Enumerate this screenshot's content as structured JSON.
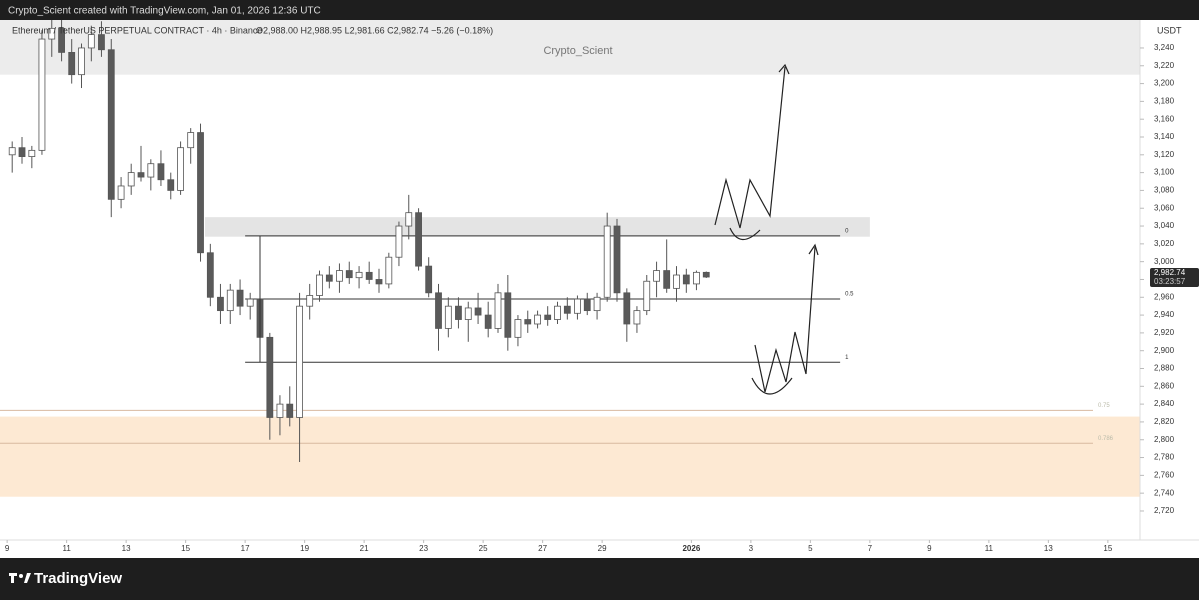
{
  "chart_data": {
    "type": "candlestick",
    "credit": "Crypto_Scient created with TradingView.com, Jan 01, 2026 12:36 UTC",
    "title": "Ethereum / TetherUS PERPETUAL CONTRACT · 4h · Binance",
    "ohlc_text": "O2,988.00 H2,988.95 L2,981.66 C2,982.74 −5.26 (−0.18%)",
    "watermark": "Crypto_Scient",
    "y_axis_label": "USDT",
    "brand": "TradingView",
    "up_color": "#ffffff",
    "down_color": "#5a5a5a",
    "wick_color": "#555555",
    "x": [
      9.17,
      9.5,
      9.83,
      10.17,
      10.5,
      10.83,
      11.17,
      11.5,
      11.83,
      12.17,
      12.5,
      12.83,
      13.17,
      13.5,
      13.83,
      14.17,
      14.5,
      14.83,
      15.17,
      15.5,
      15.83,
      16.17,
      16.5,
      16.83,
      17.17,
      17.5,
      17.83,
      18.17,
      18.5,
      18.83,
      19.17,
      19.5,
      19.83,
      20.17,
      20.5,
      20.83,
      21.17,
      21.5,
      21.83,
      22.17,
      22.5,
      22.83,
      23.17,
      23.5,
      23.83,
      24.17,
      24.5,
      24.83,
      25.17,
      25.5,
      25.83,
      26.17,
      26.5,
      26.83,
      27.17,
      27.5,
      27.83,
      28.17,
      28.5,
      28.83,
      29.17,
      29.5,
      29.83,
      30.17,
      30.5,
      30.83,
      31.17,
      31.5,
      31.83,
      32.17,
      32.5
    ],
    "open": [
      3120,
      3128,
      3118,
      3125,
      3250,
      3262,
      3235,
      3210,
      3240,
      3255,
      3238,
      3070,
      3085,
      3100,
      3095,
      3110,
      3092,
      3080,
      3128,
      3145,
      3010,
      2960,
      2945,
      2968,
      2950,
      2958,
      2915,
      2825,
      2840,
      2825,
      2950,
      2962,
      2985,
      2978,
      2990,
      2982,
      2988,
      2980,
      2975,
      3005,
      3040,
      3055,
      2995,
      2965,
      2925,
      2950,
      2935,
      2948,
      2940,
      2925,
      2965,
      2915,
      2935,
      2930,
      2940,
      2935,
      2950,
      2942,
      2958,
      2945,
      2960,
      3040,
      2965,
      2930,
      2945,
      2978,
      2990,
      2970,
      2985,
      2975,
      2988
    ],
    "high": [
      3135,
      3140,
      3130,
      3260,
      3275,
      3280,
      3250,
      3245,
      3265,
      3270,
      3250,
      3095,
      3110,
      3130,
      3115,
      3125,
      3100,
      3135,
      3150,
      3155,
      3020,
      2975,
      2975,
      2980,
      2965,
      2962,
      2920,
      2850,
      2860,
      2965,
      2975,
      2990,
      2995,
      2998,
      3000,
      2995,
      3000,
      2992,
      3010,
      3045,
      3075,
      3060,
      3005,
      2975,
      2960,
      2960,
      2955,
      2965,
      2955,
      2975,
      2985,
      2940,
      2945,
      2945,
      2950,
      2955,
      2960,
      2962,
      2965,
      2965,
      3055,
      3048,
      2970,
      2950,
      2985,
      3000,
      3025,
      2995,
      2992,
      2990,
      2988.95
    ],
    "low": [
      3100,
      3110,
      3105,
      3120,
      3230,
      3225,
      3200,
      3195,
      3225,
      3230,
      3050,
      3060,
      3075,
      3090,
      3080,
      3085,
      3070,
      3075,
      3110,
      3000,
      2950,
      2930,
      2930,
      2940,
      2935,
      2900,
      2800,
      2805,
      2815,
      2775,
      2935,
      2955,
      2970,
      2965,
      2975,
      2970,
      2975,
      2965,
      2970,
      2995,
      3025,
      2990,
      2960,
      2900,
      2915,
      2925,
      2910,
      2930,
      2915,
      2920,
      2900,
      2905,
      2920,
      2925,
      2928,
      2930,
      2935,
      2935,
      2940,
      2935,
      2955,
      2955,
      2910,
      2920,
      2940,
      2960,
      2965,
      2955,
      2965,
      2968,
      2981.66
    ],
    "close": [
      3128,
      3118,
      3125,
      3250,
      3262,
      3235,
      3210,
      3240,
      3255,
      3238,
      3070,
      3085,
      3100,
      3095,
      3110,
      3092,
      3080,
      3128,
      3145,
      3010,
      2960,
      2945,
      2968,
      2950,
      2958,
      2915,
      2825,
      2840,
      2825,
      2950,
      2962,
      2985,
      2978,
      2990,
      2982,
      2988,
      2980,
      2975,
      3005,
      3040,
      3055,
      2995,
      2965,
      2925,
      2950,
      2935,
      2948,
      2940,
      2925,
      2965,
      2915,
      2935,
      2930,
      2940,
      2935,
      2950,
      2942,
      2958,
      2945,
      2960,
      3040,
      2965,
      2930,
      2945,
      2978,
      2990,
      2970,
      2985,
      2975,
      2988,
      2982.74
    ],
    "last_price": {
      "value": 2982.74,
      "label": "2,982.74"
    },
    "countdown": "03:23:57",
    "xlim": [
      8.76,
      47.08
    ],
    "ylim": [
      2687.4,
      3271.4
    ],
    "xticks": [
      9,
      11,
      13,
      15,
      17,
      19,
      21,
      23,
      25,
      27,
      29,
      {
        "value": 32,
        "label": "2026"
      },
      {
        "value": 34,
        "label": "3"
      },
      {
        "value": 36,
        "label": "5"
      },
      {
        "value": 38,
        "label": "7"
      },
      {
        "value": 40,
        "label": "9"
      },
      {
        "value": 42,
        "label": "11"
      },
      {
        "value": 44,
        "label": "13"
      },
      {
        "value": 46,
        "label": "15"
      }
    ],
    "yticks": [
      {
        "value": 2720,
        "label": "2,720"
      },
      {
        "value": 2740,
        "label": "2,740"
      },
      {
        "value": 2760,
        "label": "2,760"
      },
      {
        "value": 2780,
        "label": "2,780"
      },
      {
        "value": 2800,
        "label": "2,800"
      },
      {
        "value": 2820,
        "label": "2,820"
      },
      {
        "value": 2840,
        "label": "2,840"
      },
      {
        "value": 2860,
        "label": "2,860"
      },
      {
        "value": 2880,
        "label": "2,880"
      },
      {
        "value": 2900,
        "label": "2,900"
      },
      {
        "value": 2920,
        "label": "2,920"
      },
      {
        "value": 2940,
        "label": "2,940"
      },
      {
        "value": 2960,
        "label": "2,960"
      },
      {
        "value": 2980,
        "label": "2,980"
      },
      {
        "value": 3000,
        "label": "3,000"
      },
      {
        "value": 3020,
        "label": "3,020"
      },
      {
        "value": 3040,
        "label": "3,040"
      },
      {
        "value": 3060,
        "label": "3,060"
      },
      {
        "value": 3080,
        "label": "3,080"
      },
      {
        "value": 3100,
        "label": "3,100"
      },
      {
        "value": 3120,
        "label": "3,120"
      },
      {
        "value": 3140,
        "label": "3,140"
      },
      {
        "value": 3160,
        "label": "3,160"
      },
      {
        "value": 3180,
        "label": "3,180"
      },
      {
        "value": 3200,
        "label": "3,200"
      },
      {
        "value": 3220,
        "label": "3,220"
      },
      {
        "value": 3240,
        "label": "3,240"
      }
    ],
    "zones": [
      {
        "low": 3210,
        "high": 3271.4,
        "x0": 8.76,
        "x1": 47.08,
        "color": "#ececec"
      },
      {
        "low": 3028,
        "high": 3050,
        "x0": 15.65,
        "x1": 38.0,
        "color": "#e4e4e4"
      },
      {
        "low": 2736,
        "high": 2826,
        "x0": 8.76,
        "x1": 47.08,
        "color": "#fde9d3"
      }
    ],
    "fib_levels": [
      {
        "label": "0",
        "price": 3029,
        "x0": 17.0,
        "x1": 37.0
      },
      {
        "label": "0.5",
        "price": 2958,
        "x0": 17.0,
        "x1": 37.0
      },
      {
        "label": "1",
        "price": 2887,
        "x0": 17.0,
        "x1": 37.0
      },
      {
        "label": "0.75",
        "price": 2833,
        "x0": 8.76,
        "x1": 45.5
      },
      {
        "label": "0.786",
        "price": 2796,
        "x0": 8.76,
        "x1": 45.5
      }
    ]
  }
}
